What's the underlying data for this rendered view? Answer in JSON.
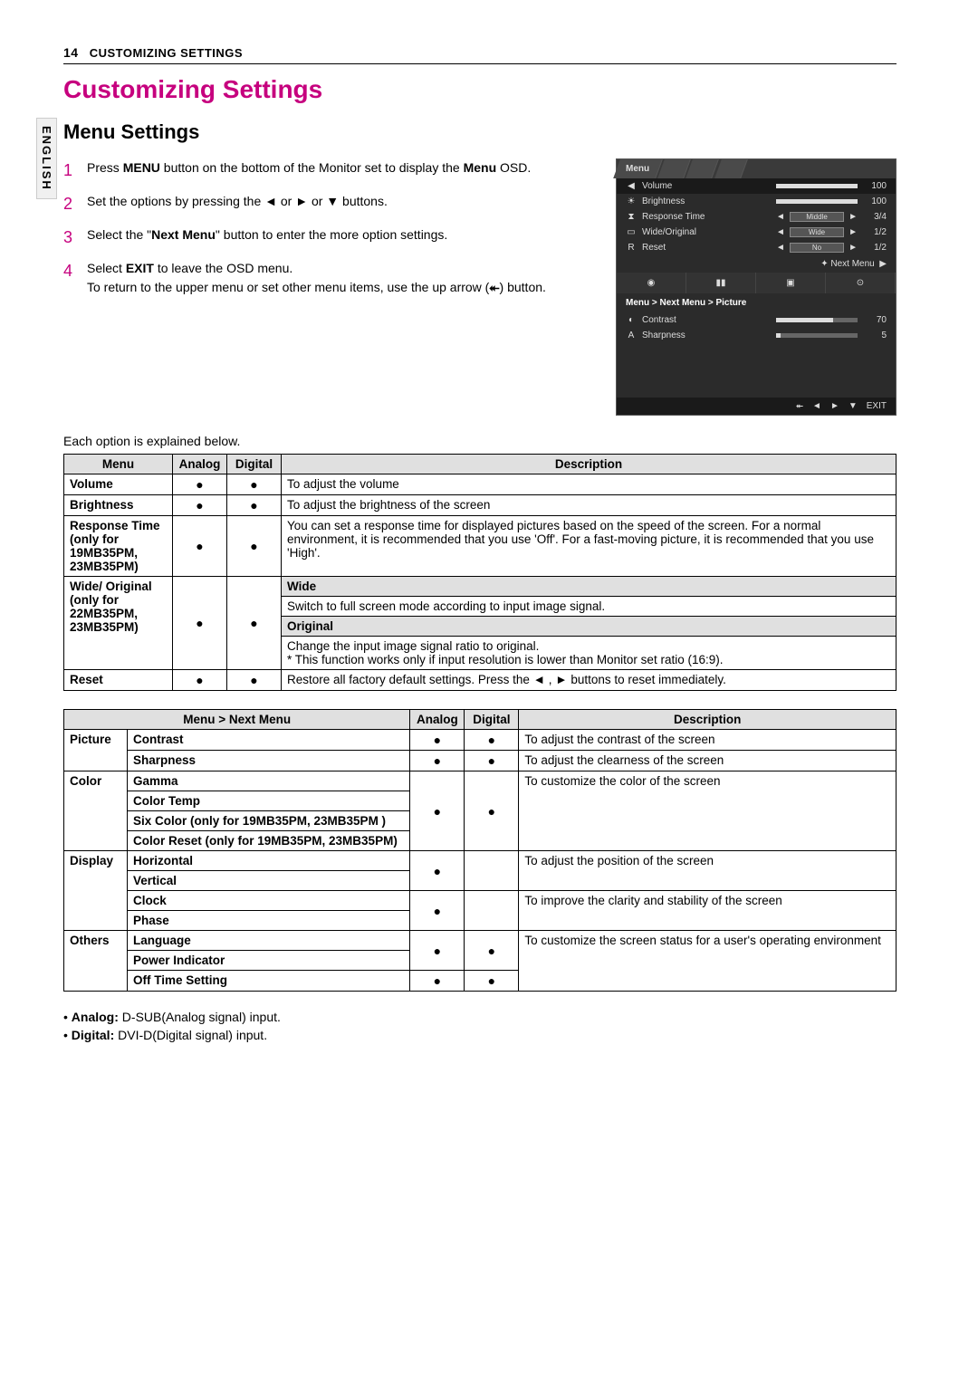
{
  "page": {
    "number": "14",
    "header": "CUSTOMIZING SETTINGS",
    "lang_tab": "ENGLISH"
  },
  "title": "Customizing Settings",
  "subtitle": "Menu Settings",
  "steps": [
    {
      "n": "1",
      "html": "Press <b>MENU</b> button on the bottom of the Monitor set to display the <b>Menu</b> OSD."
    },
    {
      "n": "2",
      "html": "Set the options by pressing the ◄ or ► or ▼ buttons."
    },
    {
      "n": "3",
      "html": "Select the \"<b>Next Menu</b>\" button to enter the more option settings."
    },
    {
      "n": "4",
      "html": "Select <b>EXIT</b> to leave the OSD menu.<br>To return to the upper menu or set other menu items, use the up arrow (<b>⯬</b>) button."
    }
  ],
  "explain": "Each option is explained below.",
  "osd": {
    "menu_tab": "Menu",
    "rows": [
      {
        "ico": "◀",
        "label": "Volume",
        "bar_pct": 100,
        "val": "100",
        "selected": true
      },
      {
        "ico": "☀",
        "label": "Brightness",
        "bar_pct": 100,
        "val": "100"
      },
      {
        "ico": "⧗",
        "label": "Response Time",
        "pill": "Middle",
        "val": "3/4"
      },
      {
        "ico": "▭",
        "label": "Wide/Original",
        "pill": "Wide",
        "val": "1/2"
      },
      {
        "ico": "R",
        "label": "Reset",
        "pill": "No",
        "val": "1/2"
      }
    ],
    "next_menu": "Next Menu",
    "breadcrumb": "Menu  >  Next Menu  >  Picture",
    "sub_rows": [
      {
        "ico": "◐",
        "label": "Contrast",
        "bar_pct": 70,
        "val": "70"
      },
      {
        "ico": "A",
        "label": "Sharpness",
        "bar_pct": 5,
        "val": "5"
      }
    ],
    "exit": "EXIT"
  },
  "table1": {
    "headers": [
      "Menu",
      "Analog",
      "Digital",
      "Description"
    ],
    "rows": [
      {
        "menu": "Volume",
        "a": "●",
        "d": "●",
        "desc": "To adjust the volume"
      },
      {
        "menu": "Brightness",
        "a": "●",
        "d": "●",
        "desc": "To adjust the brightness of the screen"
      },
      {
        "menu": "Response Time\n(only for 19MB35PM, 23MB35PM)",
        "a": "●",
        "d": "●",
        "desc": "You can set a response time for displayed pictures based on the speed of the screen. For a normal environment, it is recommended that you use 'Off'. For a fast-moving picture, it is recommended that you use 'High'."
      }
    ],
    "wide_orig_menu": "Wide/ Original\n(only for 22MB35PM, 23MB35PM)",
    "wide_label": "Wide",
    "wide_desc": "Switch to full screen mode according to input image signal.",
    "orig_label": "Original",
    "orig_desc": "Change the input image signal ratio to original.\n* This function works only if input resolution is lower than Monitor set ratio (16:9).",
    "reset": {
      "menu": "Reset",
      "a": "●",
      "d": "●",
      "desc": "Restore all factory default settings. Press the ◄ , ► buttons to reset immediately."
    }
  },
  "table2": {
    "headers": [
      "Menu > Next Menu",
      "Analog",
      "Digital",
      "Description"
    ],
    "groups": [
      {
        "group": "Picture",
        "items": [
          {
            "name": "Contrast",
            "a": "●",
            "d": "●",
            "desc": "To adjust the contrast of the screen"
          },
          {
            "name": "Sharpness",
            "a": "●",
            "d": "●",
            "desc": "To adjust the clearness of the screen"
          }
        ]
      },
      {
        "group": "Color",
        "a": "●",
        "d": "●",
        "desc": "To customize the color of the screen",
        "items": [
          {
            "name": "Gamma"
          },
          {
            "name": "Color Temp"
          },
          {
            "name": "Six Color (only for 19MB35PM, 23MB35PM )"
          },
          {
            "name": "Color Reset (only for 19MB35PM, 23MB35PM)"
          }
        ]
      },
      {
        "group": "Display",
        "items_pairs": [
          {
            "names": [
              "Horizontal",
              "Vertical"
            ],
            "a": "●",
            "d": "",
            "desc": "To adjust the position of the screen"
          },
          {
            "names": [
              "Clock",
              "Phase"
            ],
            "a": "●",
            "d": "",
            "desc": "To improve the clarity and stability of the screen"
          }
        ]
      },
      {
        "group": "Others",
        "desc": "To customize the screen status for a user's operating environment",
        "items": [
          {
            "name": "Language",
            "a_span": true,
            "a": "●",
            "d": "●"
          },
          {
            "name": "Power Indicator"
          },
          {
            "name": "Off Time Setting",
            "a": "●",
            "d": "●"
          }
        ]
      }
    ]
  },
  "footnotes": [
    {
      "b": "Analog:",
      "t": " D-SUB(Analog signal) input."
    },
    {
      "b": "Digital:",
      "t": " DVI-D(Digital signal) input."
    }
  ]
}
